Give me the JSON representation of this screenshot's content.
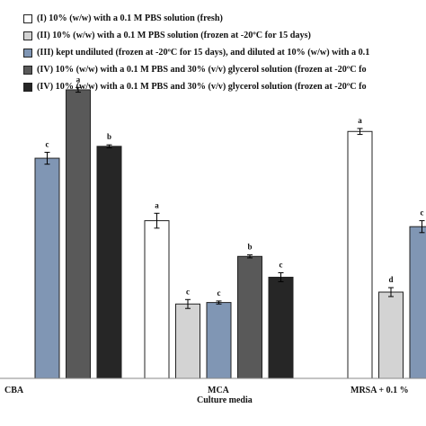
{
  "legend": [
    {
      "label": "(I) 10% (w/w) with a 0.1 M PBS solution (fresh)",
      "color": "#ffffff"
    },
    {
      "label": "(II) 10% (w/w) with a 0.1 M PBS solution (frozen at -20ºC for 15 days)",
      "color": "#d3d3d3"
    },
    {
      "label": "(III) kept undiluted (frozen at -20ºC for 15 days), and diluted at 10% (w/w) with a 0.1",
      "color": "#8096b4"
    },
    {
      "label": "(IV) 10% (w/w) with a 0.1 M PBS and 30% (v/v) glycerol solution (frozen at -20ºC fo",
      "color": "#595959"
    },
    {
      "label": "(IV) 10% (w/w) with a 0.1 M PBS and 30% (v/v) glycerol solution (frozen at -20ºC fo",
      "color": "#262626"
    }
  ],
  "chart_data": {
    "type": "bar",
    "title": "",
    "xlabel": "Culture media",
    "ylabel": "",
    "ylim": [
      0,
      100
    ],
    "grid": false,
    "legend_position": "top",
    "categories": [
      "CBA",
      "MCA",
      "MRSA + 0.1 %"
    ],
    "series": [
      {
        "name": "(I) 10% (w/w) with a 0.1 M PBS solution (fresh)",
        "color": "#ffffff",
        "values": [
          null,
          53,
          83
        ],
        "errors": [
          null,
          2.5,
          1
        ],
        "letters": [
          null,
          "a",
          "a"
        ]
      },
      {
        "name": "(II) 10% (w/w) with a 0.1 M PBS solution (frozen at -20ºC for 15 days)",
        "color": "#d3d3d3",
        "values": [
          null,
          25,
          29
        ],
        "errors": [
          null,
          1.5,
          1.5
        ],
        "letters": [
          null,
          "c",
          "d"
        ]
      },
      {
        "name": "(III) kept undiluted (frozen at -20ºC for 15 days), and diluted at 10% (w/w) with a 0.1",
        "color": "#8096b4",
        "values": [
          74,
          25.5,
          51
        ],
        "errors": [
          2,
          0.5,
          2
        ],
        "letters": [
          "c",
          "c",
          "c"
        ]
      },
      {
        "name": "(IV) 10% (w/w) with a 0.1 M PBS and 30% (v/v) glycerol solution (frozen at -20ºC fo",
        "color": "#595959",
        "values": [
          97,
          41,
          null
        ],
        "errors": [
          0.8,
          0.5,
          null
        ],
        "letters": [
          "a",
          "b",
          null
        ]
      },
      {
        "name": "(IV) 10% (w/w) with a 0.1 M PBS and 30% (v/v) glycerol solution (frozen at -20ºC fo",
        "color": "#262626",
        "values": [
          78,
          34,
          null
        ],
        "errors": [
          0.5,
          1.5,
          null
        ],
        "letters": [
          "b",
          "c",
          null
        ]
      }
    ]
  }
}
